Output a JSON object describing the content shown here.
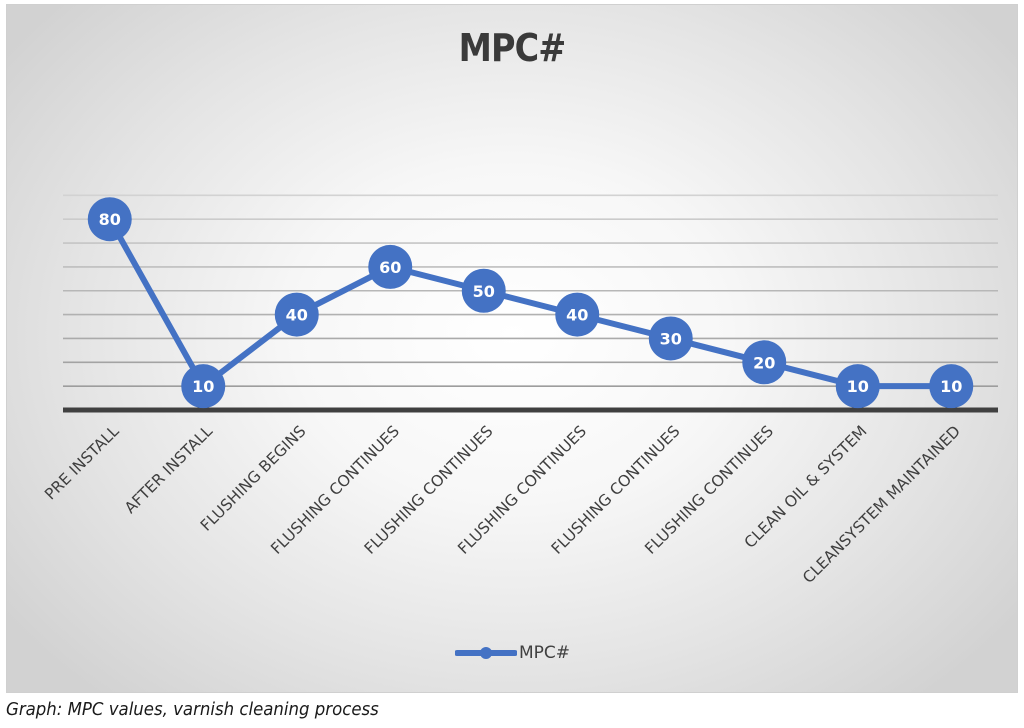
{
  "chart_data": {
    "type": "line",
    "title": "MPC#",
    "xlabel": "",
    "ylabel": "",
    "categories": [
      "PRE INSTALL",
      "AFTER INSTALL",
      "FLUSHING BEGINS",
      "FLUSHING CONTINUES",
      "FLUSHING CONTINUES",
      "FLUSHING CONTINUES",
      "FLUSHING CONTINUES",
      "FLUSHING CONTINUES",
      "CLEAN OIL & SYSTEM",
      "CLEANSYSTEM MAINTAINED"
    ],
    "series": [
      {
        "name": "MPC#",
        "values": [
          80,
          10,
          40,
          60,
          50,
          40,
          30,
          20,
          10,
          10
        ],
        "color": "#4472c4"
      }
    ],
    "ylim": [
      0,
      90
    ],
    "grid": true,
    "y_axis_labels_visible": false,
    "data_labels": true,
    "legend_position": "bottom"
  },
  "legend": {
    "label": "MPC#"
  },
  "caption": "Graph: MPC values, varnish cleaning process",
  "colors": {
    "series": "#4472c4",
    "axis": "#404040",
    "grid": "#a6a6a6"
  }
}
